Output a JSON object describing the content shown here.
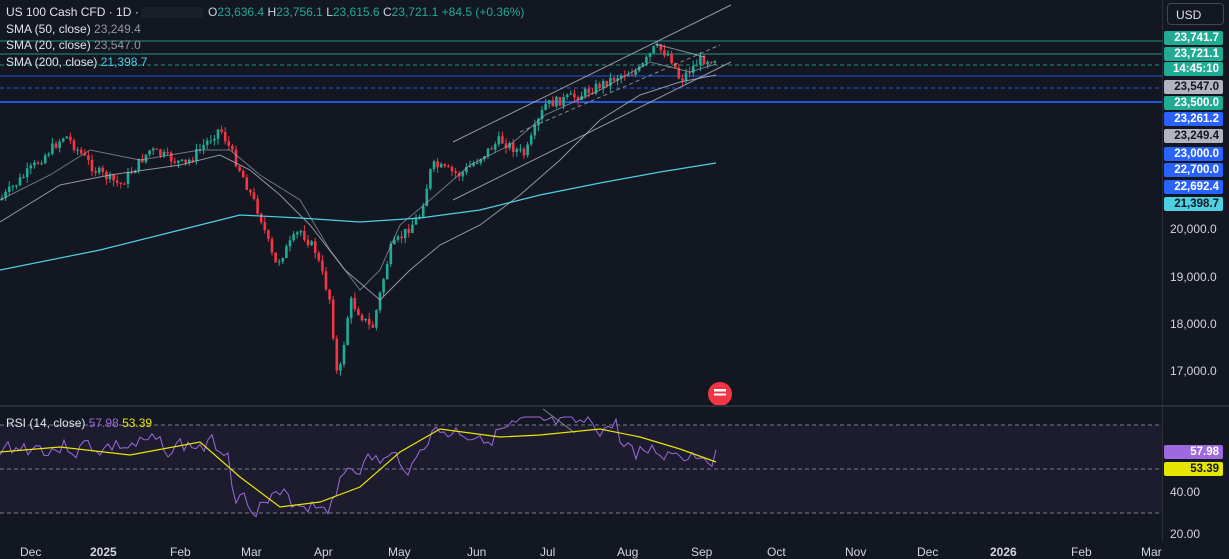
{
  "legend": {
    "symbol": "US 100 Cash CFD · 1D ·",
    "ohlc": [
      {
        "k": "O",
        "v": "23,636.4"
      },
      {
        "k": "H",
        "v": "23,756.1"
      },
      {
        "k": "L",
        "v": "23,615.6"
      },
      {
        "k": "C",
        "v": "23,721.1"
      }
    ],
    "change": "+84.5 (+0.36%)",
    "indicators": [
      {
        "name": "SMA (50, close)",
        "value": "23,249.4"
      },
      {
        "name": "SMA (20, close)",
        "value": "23,547.0"
      },
      {
        "name": "SMA (200, close)",
        "value": "21,398.7"
      }
    ]
  },
  "currency": "USD",
  "rsi": {
    "name": "RSI (14, close)",
    "value": "57.98",
    "signal": "53.39"
  },
  "price_tags": [
    {
      "text": "23,741.7",
      "bg": "#22ab94",
      "fg": "#ffffff"
    },
    {
      "text": "23,721.1",
      "bg": "#22ab94",
      "fg": "#ffffff"
    },
    {
      "text": "14:45:10",
      "bg": "#22ab94",
      "fg": "#ffffff"
    },
    {
      "text": "23,547.0",
      "bg": "#b2b5be",
      "fg": "#131722"
    },
    {
      "text": "23,500.0",
      "bg": "#22ab94",
      "fg": "#ffffff"
    },
    {
      "text": "23,261.2",
      "bg": "#2962ff",
      "fg": "#ffffff"
    },
    {
      "text": "23,249.4",
      "bg": "#b2b5be",
      "fg": "#131722"
    },
    {
      "text": "23,000.0",
      "bg": "#2962ff",
      "fg": "#ffffff"
    },
    {
      "text": "22,700.0",
      "bg": "#2962ff",
      "fg": "#ffffff"
    },
    {
      "text": "22,692.4",
      "bg": "#2962ff",
      "fg": "#ffffff"
    },
    {
      "text": "21,398.7",
      "bg": "#4dd0e1",
      "fg": "#131722"
    }
  ],
  "price_axis": [
    "20,000.0",
    "19,000.0",
    "18,000.0",
    "17,000.0"
  ],
  "rsi_tags": [
    {
      "text": "57.98",
      "bg": "#9c6ade",
      "fg": "#ffffff"
    },
    {
      "text": "53.39",
      "bg": "#e6e600",
      "fg": "#131722"
    }
  ],
  "rsi_axis": [
    "40.00",
    "20.00"
  ],
  "time_axis": [
    {
      "text": "Dec",
      "year": false
    },
    {
      "text": "2025",
      "year": true
    },
    {
      "text": "Feb",
      "year": false
    },
    {
      "text": "Mar",
      "year": false
    },
    {
      "text": "Apr",
      "year": false
    },
    {
      "text": "May",
      "year": false
    },
    {
      "text": "Jun",
      "year": false
    },
    {
      "text": "Jul",
      "year": false
    },
    {
      "text": "Aug",
      "year": false
    },
    {
      "text": "Sep",
      "year": false
    },
    {
      "text": "Oct",
      "year": false
    },
    {
      "text": "Nov",
      "year": false
    },
    {
      "text": "Dec",
      "year": false
    },
    {
      "text": "2026",
      "year": true
    },
    {
      "text": "Feb",
      "year": false
    },
    {
      "text": "Mar",
      "year": false
    }
  ],
  "colors": {
    "up": "#22ab94",
    "down": "#f23645",
    "sma50": "#b2b5be",
    "sma200": "#4dd0e1",
    "rsi": "#9c6ade",
    "rsi_ma": "#e6e600",
    "channel": "#b2b5be",
    "level_blue": "#2962ff",
    "level_green": "#22ab94"
  }
}
